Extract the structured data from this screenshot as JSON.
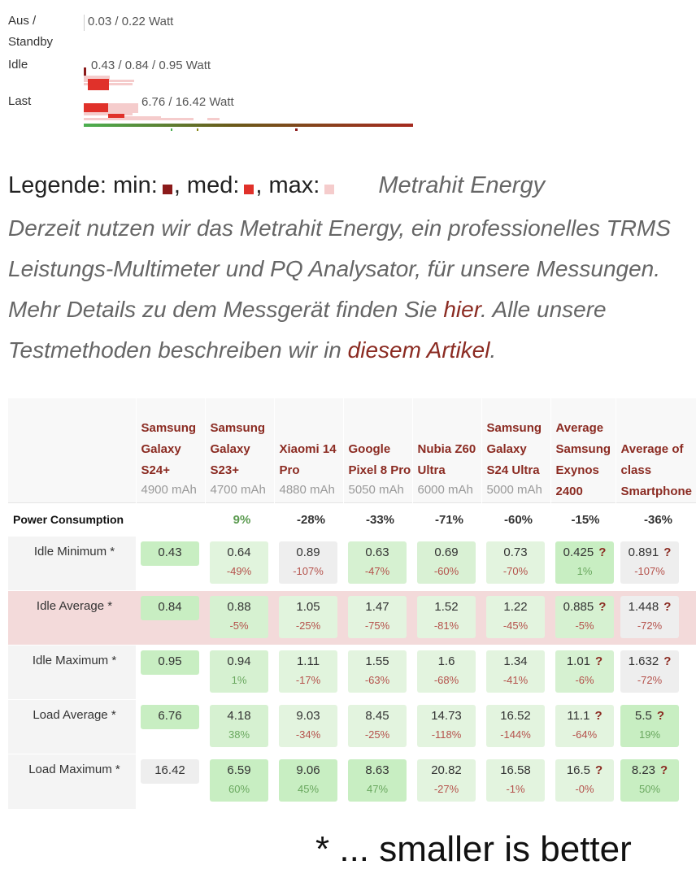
{
  "power_summary": {
    "rows": [
      {
        "label": "Aus / Standby",
        "value": "0.03 / 0.22 Watt"
      },
      {
        "label": "Idle",
        "value": "0.43 / 0.84 / 0.95 Watt"
      },
      {
        "label": "Last",
        "value": "6.76 / 16.42 Watt"
      }
    ]
  },
  "legend": {
    "min": "Legende: min:",
    "med": ", med:",
    "max": ", max:",
    "min_color": "#8b1a1a",
    "med_color": "#e0312a",
    "max_color": "#f5cccc"
  },
  "device": "Metrahit Energy",
  "description": [
    "Derzeit nutzen wir das Metrahit Energy, ein professionelles TRMS Leistungs-Multimeter und PQ Analysator, für unsere Messungen. Mehr Details zu dem Messgerät finden Sie ",
    "hier",
    ". Alle unsere Testmethoden beschreiben wir in ",
    "diesem Artikel",
    "."
  ],
  "table": {
    "columns": [
      {
        "name": "Samsung Galaxy S24+",
        "capacity": "4900 mAh"
      },
      {
        "name": "Samsung Galaxy S23+",
        "capacity": "4700 mAh"
      },
      {
        "name": "Xiaomi 14 Pro",
        "capacity": "4880 mAh"
      },
      {
        "name": "Google Pixel 8 Pro",
        "capacity": "5050 mAh"
      },
      {
        "name": "Nubia Z60 Ultra",
        "capacity": "6000 mAh"
      },
      {
        "name": "Samsung Galaxy S24 Ultra",
        "capacity": "5000 mAh"
      },
      {
        "name": "Average Samsung Exynos 2400",
        "capacity": null
      },
      {
        "name": "Average of class Smartphone",
        "capacity": null
      }
    ],
    "summary_label": "Power Consumption",
    "summary": [
      null,
      "9%",
      "-28%",
      "-33%",
      "-71%",
      "-60%",
      "-15%",
      "-36%"
    ],
    "rows": [
      {
        "label": "Idle Minimum *",
        "highlight": false,
        "cells": [
          {
            "value": "0.43",
            "color": "#c8eec2"
          },
          {
            "value": "0.64",
            "diff": "-49%",
            "color": "#e1f4dd"
          },
          {
            "value": "0.89",
            "diff": "-107%",
            "color": "#eeeeee"
          },
          {
            "value": "0.63",
            "diff": "-47%",
            "color": "#d6f1d1"
          },
          {
            "value": "0.69",
            "diff": "-60%",
            "color": "#d9f1d4"
          },
          {
            "value": "0.73",
            "diff": "-70%",
            "color": "#e3f4df"
          },
          {
            "value": "0.425",
            "diff": "1%",
            "flag": "?",
            "color": "#c8eec2"
          },
          {
            "value": "0.891",
            "diff": "-107%",
            "flag": "?",
            "color": "#eeeeee"
          }
        ]
      },
      {
        "label": "Idle Average *",
        "highlight": true,
        "cells": [
          {
            "value": "0.84",
            "color": "#c8eec2"
          },
          {
            "value": "0.88",
            "diff": "-5%",
            "color": "#d6f1d1"
          },
          {
            "value": "1.05",
            "diff": "-25%",
            "color": "#e1f4dd"
          },
          {
            "value": "1.47",
            "diff": "-75%",
            "color": "#e3f4df"
          },
          {
            "value": "1.52",
            "diff": "-81%",
            "color": "#e3f4df"
          },
          {
            "value": "1.22",
            "diff": "-45%",
            "color": "#e3f4df"
          },
          {
            "value": "0.885",
            "diff": "-5%",
            "flag": "?",
            "color": "#d6f1d1"
          },
          {
            "value": "1.448",
            "diff": "-72%",
            "flag": "?",
            "color": "#eeeeee"
          }
        ]
      },
      {
        "label": "Idle Maximum *",
        "highlight": false,
        "cells": [
          {
            "value": "0.95",
            "color": "#c8eec2"
          },
          {
            "value": "0.94",
            "diff": "1%",
            "color": "#d6f1d1"
          },
          {
            "value": "1.11",
            "diff": "-17%",
            "color": "#e1f4dd"
          },
          {
            "value": "1.55",
            "diff": "-63%",
            "color": "#e3f4df"
          },
          {
            "value": "1.6",
            "diff": "-68%",
            "color": "#e3f4df"
          },
          {
            "value": "1.34",
            "diff": "-41%",
            "color": "#e3f4df"
          },
          {
            "value": "1.01",
            "diff": "-6%",
            "flag": "?",
            "color": "#d6f1d1"
          },
          {
            "value": "1.632",
            "diff": "-72%",
            "flag": "?",
            "color": "#eeeeee"
          }
        ]
      },
      {
        "label": "Load Average *",
        "highlight": false,
        "cells": [
          {
            "value": "6.76",
            "color": "#c8eec2"
          },
          {
            "value": "4.18",
            "diff": "38%",
            "color": "#d6f1d1"
          },
          {
            "value": "9.03",
            "diff": "-34%",
            "color": "#e3f4df"
          },
          {
            "value": "8.45",
            "diff": "-25%",
            "color": "#e3f4df"
          },
          {
            "value": "14.73",
            "diff": "-118%",
            "color": "#e3f4df"
          },
          {
            "value": "16.52",
            "diff": "-144%",
            "color": "#e3f4df"
          },
          {
            "value": "11.1",
            "diff": "-64%",
            "flag": "?",
            "color": "#e3f4df"
          },
          {
            "value": "5.5",
            "diff": "19%",
            "flag": "?",
            "color": "#c8eec2"
          }
        ]
      },
      {
        "label": "Load Maximum *",
        "highlight": false,
        "cells": [
          {
            "value": "16.42",
            "color": "#eeeeee"
          },
          {
            "value": "6.59",
            "diff": "60%",
            "color": "#c8eec2"
          },
          {
            "value": "9.06",
            "diff": "45%",
            "color": "#c8eec2"
          },
          {
            "value": "8.63",
            "diff": "47%",
            "color": "#c8eec2"
          },
          {
            "value": "20.82",
            "diff": "-27%",
            "color": "#e3f4df"
          },
          {
            "value": "16.58",
            "diff": "-1%",
            "color": "#e3f4df"
          },
          {
            "value": "16.5",
            "diff": "-0%",
            "flag": "?",
            "color": "#e3f4df"
          },
          {
            "value": "8.23",
            "diff": "50%",
            "flag": "?",
            "color": "#c8eec2"
          }
        ]
      }
    ],
    "footnote": "* ... smaller is better"
  }
}
